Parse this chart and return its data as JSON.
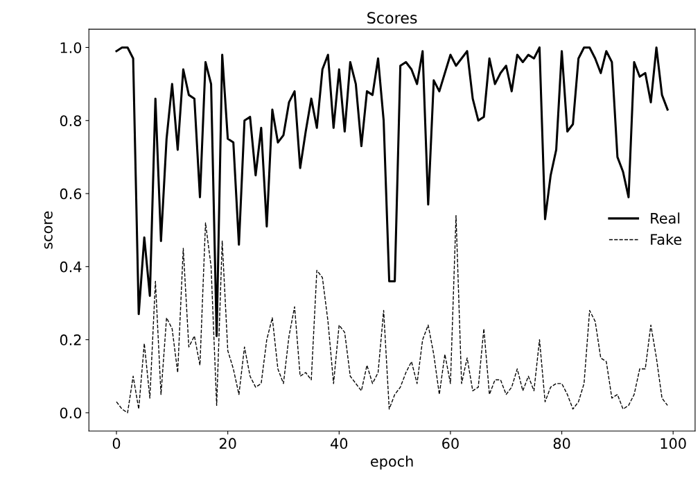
{
  "chart_data": {
    "type": "line",
    "title": "Scores",
    "xlabel": "epoch",
    "ylabel": "score",
    "x": [
      0,
      1,
      2,
      3,
      4,
      5,
      6,
      7,
      8,
      9,
      10,
      11,
      12,
      13,
      14,
      15,
      16,
      17,
      18,
      19,
      20,
      21,
      22,
      23,
      24,
      25,
      26,
      27,
      28,
      29,
      30,
      31,
      32,
      33,
      34,
      35,
      36,
      37,
      38,
      39,
      40,
      41,
      42,
      43,
      44,
      45,
      46,
      47,
      48,
      49,
      50,
      51,
      52,
      53,
      54,
      55,
      56,
      57,
      58,
      59,
      60,
      61,
      62,
      63,
      64,
      65,
      66,
      67,
      68,
      69,
      70,
      71,
      72,
      73,
      74,
      75,
      76,
      77,
      78,
      79,
      80,
      81,
      82,
      83,
      84,
      85,
      86,
      87,
      88,
      89,
      90,
      91,
      92,
      93,
      94,
      95,
      96,
      97,
      98,
      99
    ],
    "series": [
      {
        "name": "Real",
        "color": "#000000",
        "values": [
          0.99,
          1.0,
          1.0,
          0.97,
          0.27,
          0.48,
          0.32,
          0.86,
          0.47,
          0.75,
          0.9,
          0.72,
          0.94,
          0.87,
          0.86,
          0.59,
          0.96,
          0.9,
          0.21,
          0.98,
          0.75,
          0.74,
          0.46,
          0.8,
          0.81,
          0.65,
          0.78,
          0.51,
          0.83,
          0.74,
          0.76,
          0.85,
          0.88,
          0.67,
          0.77,
          0.86,
          0.78,
          0.94,
          0.98,
          0.78,
          0.94,
          0.77,
          0.96,
          0.9,
          0.73,
          0.88,
          0.87,
          0.97,
          0.8,
          0.36,
          0.36,
          0.95,
          0.96,
          0.94,
          0.9,
          0.99,
          0.57,
          0.91,
          0.88,
          0.93,
          0.98,
          0.95,
          0.97,
          0.99,
          0.86,
          0.8,
          0.81,
          0.97,
          0.9,
          0.93,
          0.95,
          0.88,
          0.98,
          0.96,
          0.98,
          0.97,
          1.0,
          0.53,
          0.65,
          0.72,
          0.99,
          0.77,
          0.79,
          0.97,
          1.0,
          1.0,
          0.97,
          0.93,
          0.99,
          0.96,
          0.7,
          0.66,
          0.59,
          0.96,
          0.92,
          0.93,
          0.85,
          1.0,
          0.87,
          0.83
        ]
      },
      {
        "name": "Fake",
        "color": "#000000",
        "line_style": "dashed",
        "values": [
          0.03,
          0.01,
          0.0,
          0.1,
          0.01,
          0.19,
          0.04,
          0.36,
          0.05,
          0.26,
          0.23,
          0.11,
          0.45,
          0.18,
          0.21,
          0.13,
          0.52,
          0.4,
          0.02,
          0.47,
          0.17,
          0.12,
          0.05,
          0.18,
          0.1,
          0.07,
          0.08,
          0.2,
          0.26,
          0.12,
          0.08,
          0.21,
          0.29,
          0.1,
          0.11,
          0.09,
          0.39,
          0.37,
          0.25,
          0.08,
          0.24,
          0.22,
          0.1,
          0.08,
          0.06,
          0.13,
          0.08,
          0.11,
          0.28,
          0.01,
          0.05,
          0.07,
          0.11,
          0.14,
          0.08,
          0.2,
          0.24,
          0.16,
          0.05,
          0.16,
          0.08,
          0.54,
          0.08,
          0.15,
          0.06,
          0.07,
          0.23,
          0.05,
          0.09,
          0.09,
          0.05,
          0.07,
          0.12,
          0.06,
          0.1,
          0.06,
          0.2,
          0.03,
          0.07,
          0.08,
          0.08,
          0.05,
          0.01,
          0.03,
          0.08,
          0.28,
          0.25,
          0.15,
          0.14,
          0.04,
          0.05,
          0.01,
          0.02,
          0.05,
          0.12,
          0.12,
          0.24,
          0.15,
          0.04,
          0.02
        ]
      }
    ],
    "xlim": [
      -4.95,
      103.95
    ],
    "ylim": [
      -0.05,
      1.05
    ],
    "xticks": [
      0,
      20,
      40,
      60,
      80,
      100
    ],
    "yticks": [
      {
        "value": 0,
        "label": "0.0"
      },
      {
        "value": 0.2,
        "label": "0.2"
      },
      {
        "value": 0.4,
        "label": "0.4"
      },
      {
        "value": 0.6,
        "label": "0.6"
      },
      {
        "value": 0.8,
        "label": "0.8"
      },
      {
        "value": 1.0,
        "label": "1.0"
      }
    ],
    "grid": false,
    "legend": "center right",
    "line_style": "solid",
    "marker": "none"
  }
}
